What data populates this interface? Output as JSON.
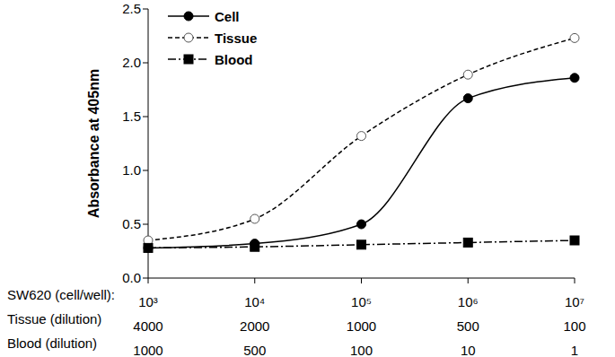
{
  "chart_data": {
    "type": "line",
    "ylabel": "Absorbance at 405nm",
    "xlabel": "SW620 (cell/well):",
    "categories": [
      "10³",
      "10⁴",
      "10⁵",
      "10⁶",
      "10⁷"
    ],
    "x_label_rows": [
      {
        "name": "Tissue (dilution)",
        "labels": [
          "4000",
          "2000",
          "1000",
          "500",
          "100"
        ]
      },
      {
        "name": "Blood (dilution)",
        "labels": [
          "1000",
          "500",
          "100",
          "10",
          "1"
        ]
      }
    ],
    "ylim": [
      0,
      2.5
    ],
    "yticks": [
      {
        "value": 0,
        "label": "0.0"
      },
      0.5,
      {
        "value": 1,
        "label": "1.0"
      },
      1.5,
      {
        "value": 2,
        "label": "2.0"
      },
      2.5
    ],
    "grid": false,
    "legend": "upper left",
    "series": [
      {
        "name": "Cell",
        "color": "#000000",
        "marker": "circle",
        "line_style": "solid",
        "values": [
          0.28,
          0.32,
          0.5,
          1.67,
          1.86
        ]
      },
      {
        "name": "Tissue",
        "color": "#000000",
        "marker": "hollow_circle",
        "line_style": "dashed",
        "values": [
          0.35,
          0.55,
          1.32,
          1.89,
          2.23
        ]
      },
      {
        "name": "Blood",
        "color": "#000000",
        "marker": "square",
        "line_style": "dashdot",
        "values": [
          0.28,
          0.29,
          0.31,
          0.33,
          0.35
        ]
      }
    ]
  }
}
